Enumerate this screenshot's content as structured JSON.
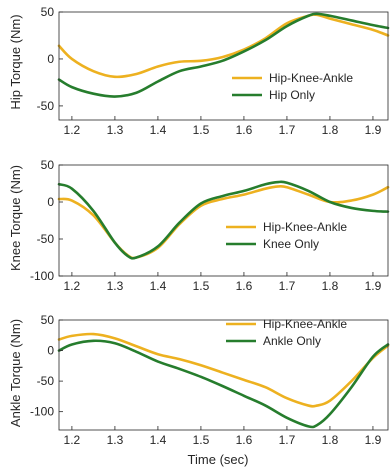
{
  "chart_data": [
    {
      "type": "line",
      "ylabel": "Hip Torque (Nm)",
      "xlim": [
        1.17,
        1.935
      ],
      "ylim": [
        -65,
        50
      ],
      "xticks": [
        1.2,
        1.3,
        1.4,
        1.5,
        1.6,
        1.7,
        1.8,
        1.9
      ],
      "yticks": [
        -50,
        0,
        50
      ],
      "legend_position": "bottom-right",
      "series": [
        {
          "name": "Hip-Knee-Ankle",
          "color": "#EDB120",
          "x": [
            1.17,
            1.2,
            1.25,
            1.3,
            1.35,
            1.4,
            1.45,
            1.5,
            1.55,
            1.6,
            1.65,
            1.7,
            1.75,
            1.77,
            1.8,
            1.85,
            1.9,
            1.935
          ],
          "y": [
            14,
            0,
            -13,
            -19,
            -16,
            -8,
            -3,
            -2,
            2,
            10,
            22,
            38,
            46,
            47,
            43,
            37,
            31,
            25
          ]
        },
        {
          "name": "Hip Only",
          "color": "#267D2D",
          "x": [
            1.17,
            1.2,
            1.25,
            1.3,
            1.35,
            1.4,
            1.45,
            1.5,
            1.55,
            1.6,
            1.65,
            1.7,
            1.75,
            1.77,
            1.8,
            1.85,
            1.9,
            1.935
          ],
          "y": [
            -22,
            -30,
            -37,
            -40,
            -36,
            -24,
            -13,
            -8,
            -2,
            8,
            20,
            35,
            46,
            48,
            46,
            41,
            36,
            33
          ]
        }
      ]
    },
    {
      "type": "line",
      "ylabel": "Knee Torque (Nm)",
      "xlim": [
        1.17,
        1.935
      ],
      "ylim": [
        -100,
        50
      ],
      "xticks": [
        1.2,
        1.3,
        1.4,
        1.5,
        1.6,
        1.7,
        1.8,
        1.9
      ],
      "yticks": [
        -100,
        -50,
        0,
        50
      ],
      "legend_position": "bottom-right",
      "series": [
        {
          "name": "Hip-Knee-Ankle",
          "color": "#EDB120",
          "x": [
            1.17,
            1.2,
            1.25,
            1.3,
            1.33,
            1.35,
            1.4,
            1.45,
            1.5,
            1.55,
            1.6,
            1.65,
            1.68,
            1.7,
            1.75,
            1.8,
            1.85,
            1.9,
            1.935
          ],
          "y": [
            4,
            2,
            -18,
            -55,
            -72,
            -75,
            -62,
            -30,
            -5,
            4,
            10,
            18,
            21,
            20,
            10,
            0,
            2,
            10,
            20
          ]
        },
        {
          "name": "Knee Only",
          "color": "#267D2D",
          "x": [
            1.17,
            1.2,
            1.25,
            1.3,
            1.33,
            1.35,
            1.4,
            1.45,
            1.5,
            1.55,
            1.6,
            1.65,
            1.68,
            1.7,
            1.75,
            1.8,
            1.85,
            1.9,
            1.935
          ],
          "y": [
            24,
            18,
            -12,
            -55,
            -73,
            -75,
            -60,
            -28,
            -2,
            8,
            15,
            24,
            27,
            26,
            15,
            0,
            -8,
            -12,
            -13
          ]
        }
      ]
    },
    {
      "type": "line",
      "ylabel": "Ankle Torque (Nm)",
      "xlim": [
        1.17,
        1.935
      ],
      "ylim": [
        -130,
        50
      ],
      "xticks": [
        1.2,
        1.3,
        1.4,
        1.5,
        1.6,
        1.7,
        1.8,
        1.9
      ],
      "yticks": [
        -100,
        -50,
        0,
        50
      ],
      "xlabel": "Time (sec)",
      "legend_position": "top-right",
      "series": [
        {
          "name": "Hip-Knee-Ankle",
          "color": "#EDB120",
          "x": [
            1.17,
            1.2,
            1.25,
            1.3,
            1.35,
            1.4,
            1.45,
            1.5,
            1.55,
            1.6,
            1.65,
            1.7,
            1.75,
            1.77,
            1.8,
            1.85,
            1.9,
            1.935
          ],
          "y": [
            18,
            24,
            27,
            20,
            7,
            -6,
            -14,
            -24,
            -36,
            -48,
            -60,
            -78,
            -90,
            -90,
            -82,
            -50,
            -12,
            8
          ]
        },
        {
          "name": "Ankle Only",
          "color": "#267D2D",
          "x": [
            1.17,
            1.2,
            1.25,
            1.3,
            1.35,
            1.4,
            1.45,
            1.5,
            1.55,
            1.6,
            1.65,
            1.7,
            1.75,
            1.77,
            1.8,
            1.85,
            1.9,
            1.935
          ],
          "y": [
            0,
            10,
            16,
            12,
            -2,
            -18,
            -30,
            -43,
            -58,
            -74,
            -90,
            -110,
            -124,
            -122,
            -104,
            -60,
            -10,
            10
          ]
        }
      ]
    }
  ]
}
